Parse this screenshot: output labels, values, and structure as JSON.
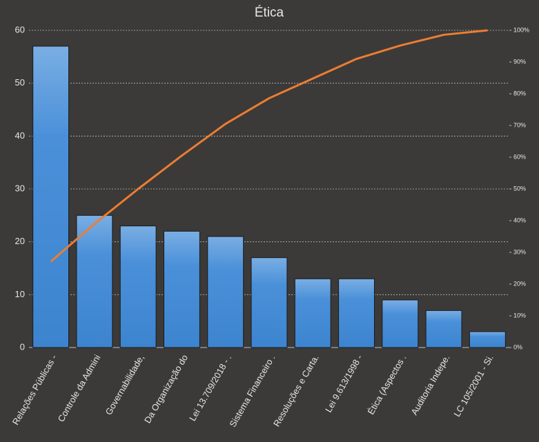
{
  "chart_data": {
    "type": "pareto",
    "title": "Ética",
    "categories": [
      "Relações Públicas -",
      "Controle da Admini",
      "Governabilidade,",
      "Da Organização do",
      "Lei 13.709/2018 - .",
      "Sistema Financeiro .",
      "Resoluções e Carta.",
      "Lei 9.613/1998 -",
      "Ética (Aspectos .",
      "Auditoria Indepe.",
      "LC 105/2001 - Si."
    ],
    "series": [
      {
        "type": "bar",
        "color": "#4a90d9",
        "values": [
          57,
          25,
          23,
          22,
          21,
          17,
          13,
          13,
          9,
          7,
          3
        ]
      },
      {
        "type": "line",
        "axis": "y2",
        "color": "#ed7d31",
        "values": [
          27.1,
          39.0,
          50.0,
          60.5,
          70.5,
          78.6,
          84.8,
          91.0,
          95.2,
          98.6,
          100
        ]
      }
    ],
    "ylim": [
      0,
      60
    ],
    "yticks": [
      0,
      10,
      20,
      30,
      40,
      50,
      60
    ],
    "y2lim": [
      0,
      100
    ],
    "y2ticks": [
      {
        "value": 0,
        "label": "0%"
      },
      {
        "value": 10,
        "label": "10%"
      },
      {
        "value": 20,
        "label": "20%"
      },
      {
        "value": 30,
        "label": "30%"
      },
      {
        "value": 40,
        "label": "40%"
      },
      {
        "value": 50,
        "label": "50%"
      },
      {
        "value": 60,
        "label": "60%"
      },
      {
        "value": 70,
        "label": "70%"
      },
      {
        "value": 80,
        "label": "80%"
      },
      {
        "value": 90,
        "label": "90%"
      },
      {
        "value": 100,
        "label": "100%"
      }
    ],
    "grid": true
  }
}
